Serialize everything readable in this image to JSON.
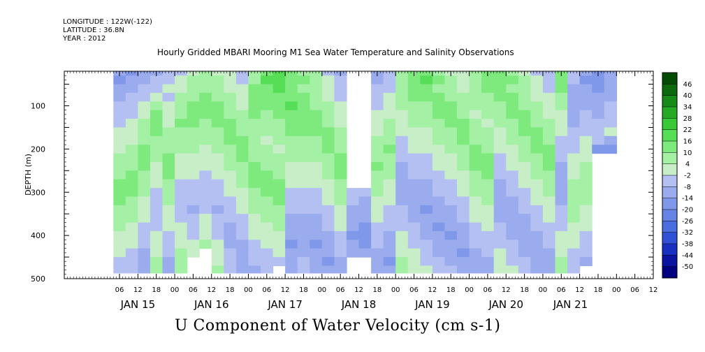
{
  "header": {
    "longitude": "LONGITUDE : 122W(-122)",
    "latitude": "LATITUDE : 36.8N",
    "year": "YEAR : 2012"
  },
  "chart_data": {
    "type": "heatmap",
    "title": "Hourly Gridded MBARI Mooring M1 Sea Water Temperature and Salinity Observations",
    "xlabel": "U Component of Water Velocity (cm s-1)",
    "ylabel": "DEPTH (m)",
    "x_start_hour": 0,
    "x_end_hour": 167,
    "ylim": [
      500,
      20
    ],
    "y_ticks": [
      100,
      200,
      300,
      400,
      500
    ],
    "x_hour_tick_labels": [
      "06",
      "12",
      "18",
      "00",
      "06",
      "12",
      "18",
      "00",
      "06",
      "12",
      "18",
      "00",
      "06",
      "12",
      "18",
      "00",
      "06",
      "12",
      "18",
      "00",
      "06",
      "12",
      "18",
      "00",
      "06",
      "12",
      "18",
      "00",
      "06",
      "12"
    ],
    "x_hour_tick_positions_h": [
      6,
      12,
      18,
      24,
      30,
      36,
      42,
      48,
      54,
      60,
      66,
      72,
      78,
      84,
      90,
      96,
      102,
      108,
      114,
      120,
      126,
      132,
      138,
      144,
      150,
      156,
      162,
      168,
      174,
      180
    ],
    "x_day_labels": [
      "JAN 15",
      "JAN 16",
      "JAN 17",
      "JAN 18",
      "JAN 19",
      "JAN 20",
      "JAN 21"
    ],
    "x_day_positions_h": [
      12,
      36,
      60,
      84,
      108,
      132,
      153
    ],
    "colorbar": {
      "levels": [
        -50,
        -44,
        -38,
        -32,
        -26,
        -20,
        -14,
        -8,
        -2,
        4,
        10,
        16,
        22,
        28,
        34,
        40,
        46
      ],
      "tick_labels": [
        "46",
        "40",
        "34",
        "28",
        "22",
        "16",
        "10",
        "4",
        "-2",
        "-8",
        "-14",
        "-20",
        "-26",
        "-32",
        "-38",
        "-44",
        "-50"
      ],
      "colors": [
        "#000080",
        "#0a14a0",
        "#1830c0",
        "#3050d6",
        "#4a6ee0",
        "#6584e6",
        "#8098ea",
        "#9aacee",
        "#b4c0f2",
        "#c8eec8",
        "#a4f0a4",
        "#7eea7e",
        "#56de56",
        "#38c838",
        "#26aa26",
        "#188a18",
        "#0c6a0c",
        "#044c04"
      ]
    },
    "grid_hours": 4,
    "grid_depths": [
      20,
      40,
      60,
      80,
      100,
      120,
      140,
      160,
      180,
      200,
      220,
      240,
      260,
      280,
      300,
      320,
      340,
      360,
      380,
      400,
      420,
      440,
      460,
      480
    ],
    "grid_hour_values": [
      6,
      10,
      14,
      18,
      22,
      26,
      30,
      34,
      38,
      42,
      46,
      50,
      54,
      58,
      62,
      66,
      70,
      74,
      78,
      82,
      86,
      90,
      94,
      98,
      102,
      106,
      110,
      114,
      118,
      122,
      126,
      130,
      134,
      138,
      142,
      146,
      150,
      154,
      158,
      162,
      166
    ],
    "values": [
      [
        -14,
        -16,
        -12,
        -10,
        -8,
        -4,
        2,
        4,
        2,
        -2,
        -6,
        6,
        14,
        16,
        12,
        8,
        4,
        -4,
        -10,
        null,
        null,
        -12,
        -8,
        4,
        10,
        14,
        8,
        2,
        -2,
        4,
        10,
        12,
        8,
        2,
        -4,
        -8,
        10,
        -6,
        -14,
        -16,
        -12
      ],
      [
        -16,
        -14,
        -10,
        -8,
        -6,
        -2,
        4,
        6,
        4,
        0,
        -4,
        8,
        16,
        18,
        14,
        10,
        6,
        -2,
        -8,
        null,
        null,
        -10,
        -6,
        6,
        12,
        16,
        10,
        4,
        0,
        6,
        12,
        14,
        10,
        4,
        -2,
        -6,
        12,
        -8,
        -16,
        -18,
        -14
      ],
      [
        -12,
        -10,
        -8,
        -4,
        -2,
        2,
        6,
        8,
        6,
        2,
        -2,
        10,
        14,
        16,
        12,
        8,
        4,
        0,
        -6,
        null,
        null,
        -8,
        -4,
        8,
        14,
        12,
        8,
        6,
        2,
        8,
        10,
        12,
        8,
        4,
        0,
        -4,
        10,
        -10,
        -14,
        -16,
        -12
      ],
      [
        -10,
        -8,
        -6,
        2,
        -4,
        4,
        8,
        10,
        8,
        4,
        0,
        12,
        12,
        14,
        14,
        10,
        6,
        2,
        -4,
        null,
        null,
        -6,
        -2,
        6,
        10,
        10,
        10,
        8,
        4,
        6,
        8,
        10,
        10,
        6,
        2,
        -2,
        6,
        -12,
        -12,
        -14,
        -10
      ],
      [
        -8,
        -6,
        -2,
        6,
        -2,
        6,
        10,
        12,
        10,
        6,
        2,
        12,
        10,
        12,
        16,
        12,
        8,
        4,
        -2,
        null,
        null,
        -4,
        0,
        4,
        8,
        8,
        12,
        10,
        6,
        4,
        6,
        8,
        12,
        8,
        4,
        0,
        4,
        -14,
        -10,
        -12,
        -8
      ],
      [
        -6,
        -4,
        2,
        10,
        0,
        8,
        12,
        10,
        12,
        8,
        4,
        10,
        8,
        10,
        14,
        14,
        10,
        6,
        0,
        null,
        null,
        -2,
        2,
        2,
        6,
        6,
        10,
        12,
        8,
        2,
        4,
        6,
        10,
        10,
        6,
        2,
        2,
        -12,
        -8,
        -10,
        -6
      ],
      [
        -4,
        -2,
        4,
        12,
        2,
        10,
        10,
        8,
        10,
        10,
        6,
        8,
        6,
        8,
        12,
        12,
        12,
        8,
        2,
        null,
        null,
        0,
        4,
        0,
        4,
        4,
        8,
        10,
        10,
        4,
        2,
        4,
        8,
        12,
        8,
        4,
        0,
        -10,
        -6,
        -8,
        -4
      ],
      [
        -2,
        0,
        6,
        10,
        4,
        8,
        8,
        6,
        8,
        12,
        8,
        6,
        4,
        6,
        10,
        10,
        10,
        10,
        4,
        null,
        null,
        2,
        6,
        -2,
        2,
        2,
        6,
        8,
        12,
        6,
        4,
        2,
        6,
        10,
        10,
        6,
        -2,
        -8,
        -4,
        -6,
        -2
      ],
      [
        0,
        2,
        8,
        8,
        6,
        6,
        6,
        4,
        6,
        10,
        10,
        4,
        2,
        4,
        8,
        8,
        8,
        12,
        6,
        null,
        null,
        4,
        8,
        -4,
        0,
        0,
        4,
        6,
        10,
        8,
        6,
        0,
        4,
        8,
        12,
        8,
        -4,
        -6,
        -2,
        -4,
        -14
      ],
      [
        2,
        4,
        10,
        6,
        8,
        4,
        4,
        2,
        4,
        8,
        12,
        6,
        4,
        2,
        6,
        6,
        6,
        10,
        8,
        null,
        null,
        6,
        10,
        -6,
        -2,
        -2,
        2,
        4,
        8,
        10,
        8,
        -2,
        2,
        6,
        10,
        10,
        -6,
        -4,
        0,
        -16,
        -16
      ],
      [
        4,
        6,
        12,
        4,
        10,
        2,
        2,
        0,
        2,
        6,
        10,
        8,
        6,
        4,
        4,
        4,
        4,
        8,
        10,
        null,
        null,
        8,
        8,
        -8,
        -4,
        -4,
        0,
        2,
        6,
        12,
        10,
        -4,
        0,
        4,
        8,
        12,
        -8,
        -2,
        2,
        null,
        null
      ],
      [
        6,
        8,
        10,
        2,
        12,
        0,
        0,
        -2,
        0,
        4,
        8,
        10,
        8,
        6,
        2,
        2,
        2,
        6,
        12,
        null,
        null,
        10,
        6,
        -10,
        -6,
        -6,
        -2,
        0,
        4,
        10,
        12,
        -6,
        -2,
        2,
        6,
        10,
        -10,
        0,
        4,
        null,
        null
      ],
      [
        8,
        10,
        8,
        0,
        10,
        -2,
        -2,
        -4,
        -2,
        2,
        6,
        12,
        10,
        8,
        0,
        0,
        0,
        4,
        10,
        null,
        null,
        8,
        4,
        -12,
        -8,
        -8,
        -4,
        -2,
        2,
        8,
        10,
        -8,
        -4,
        0,
        4,
        8,
        -12,
        2,
        6,
        null,
        null
      ],
      [
        10,
        12,
        6,
        -2,
        8,
        -4,
        -4,
        -6,
        -4,
        0,
        4,
        10,
        12,
        10,
        -2,
        -2,
        -2,
        2,
        8,
        null,
        null,
        6,
        2,
        -14,
        -10,
        -10,
        -6,
        -4,
        0,
        6,
        8,
        -10,
        -6,
        -2,
        2,
        6,
        -14,
        4,
        8,
        null,
        null
      ],
      [
        12,
        10,
        4,
        -4,
        6,
        -6,
        -6,
        -8,
        -6,
        -2,
        2,
        8,
        10,
        12,
        -4,
        -4,
        -4,
        0,
        6,
        -6,
        -8,
        4,
        0,
        -12,
        -12,
        -12,
        -8,
        -6,
        -2,
        4,
        6,
        -12,
        -8,
        -4,
        0,
        4,
        -12,
        6,
        6,
        null,
        null
      ],
      [
        10,
        8,
        2,
        -6,
        4,
        -8,
        -8,
        -6,
        -8,
        -4,
        0,
        6,
        8,
        10,
        -6,
        -6,
        -6,
        -2,
        4,
        -8,
        -10,
        2,
        -2,
        -10,
        -14,
        -14,
        -10,
        -8,
        -4,
        2,
        4,
        -14,
        -10,
        -6,
        -2,
        2,
        -10,
        8,
        4,
        null,
        null
      ],
      [
        8,
        6,
        0,
        -8,
        2,
        -6,
        -10,
        -4,
        -10,
        -6,
        -2,
        4,
        6,
        8,
        -8,
        -8,
        -8,
        -4,
        2,
        -10,
        -12,
        0,
        -4,
        -8,
        -12,
        -16,
        -12,
        -10,
        -6,
        0,
        2,
        -12,
        -12,
        -8,
        -4,
        0,
        -8,
        6,
        2,
        null,
        null
      ],
      [
        6,
        4,
        -2,
        -6,
        0,
        -4,
        -8,
        -2,
        -8,
        -8,
        -4,
        2,
        4,
        6,
        -10,
        -10,
        -10,
        -6,
        0,
        -12,
        -14,
        -2,
        -6,
        -6,
        -10,
        -14,
        -14,
        -12,
        -8,
        -2,
        0,
        -10,
        -14,
        -10,
        -6,
        -2,
        -6,
        4,
        0,
        null,
        null
      ],
      [
        4,
        2,
        -4,
        -4,
        -2,
        -2,
        -6,
        0,
        -6,
        -10,
        -6,
        0,
        2,
        4,
        -12,
        -12,
        -12,
        -8,
        -2,
        -14,
        -16,
        -4,
        -8,
        -4,
        -8,
        -12,
        -16,
        -14,
        -10,
        -4,
        -2,
        -8,
        -12,
        -12,
        -8,
        -4,
        -4,
        2,
        -2,
        null,
        null
      ],
      [
        2,
        0,
        -6,
        -2,
        -4,
        0,
        -4,
        2,
        -4,
        -12,
        -8,
        -2,
        0,
        2,
        -14,
        -14,
        -14,
        -10,
        -4,
        -16,
        -18,
        -6,
        -10,
        -2,
        -6,
        -10,
        -14,
        -16,
        -12,
        -6,
        -4,
        -6,
        -10,
        -14,
        -10,
        -6,
        -2,
        0,
        -4,
        null,
        null
      ],
      [
        0,
        -2,
        -8,
        0,
        -6,
        2,
        -2,
        4,
        -2,
        -10,
        -10,
        -4,
        -2,
        0,
        -16,
        -12,
        -16,
        -12,
        -6,
        -14,
        -16,
        -8,
        -12,
        0,
        -4,
        -8,
        -12,
        -14,
        -14,
        -8,
        -6,
        -4,
        -8,
        -12,
        -12,
        -8,
        0,
        -2,
        -6,
        null,
        null
      ],
      [
        -2,
        -4,
        -10,
        2,
        -8,
        4,
        0,
        null,
        0,
        -8,
        -12,
        -6,
        -4,
        -2,
        -14,
        -10,
        -14,
        -14,
        -8,
        -12,
        -14,
        -10,
        -14,
        2,
        -2,
        -6,
        -10,
        -12,
        -16,
        -10,
        -8,
        -2,
        -6,
        -10,
        -14,
        -10,
        2,
        -4,
        -8,
        null,
        null
      ],
      [
        -4,
        -6,
        -12,
        4,
        -10,
        6,
        null,
        null,
        2,
        -6,
        -14,
        -8,
        -6,
        -4,
        -12,
        -8,
        -12,
        -16,
        -10,
        null,
        null,
        -12,
        -16,
        4,
        0,
        -4,
        -8,
        -10,
        -14,
        -12,
        -10,
        0,
        -4,
        -8,
        -12,
        -12,
        4,
        -6,
        -10,
        null,
        null
      ],
      [
        -6,
        -8,
        -14,
        6,
        -12,
        4,
        null,
        null,
        4,
        -4,
        -12,
        -10,
        -8,
        null,
        -10,
        -6,
        -10,
        -14,
        -12,
        null,
        null,
        -14,
        -14,
        6,
        2,
        -2,
        -6,
        -8,
        -12,
        -14,
        -12,
        2,
        -2,
        -6,
        -10,
        -14,
        6,
        -8,
        null,
        null,
        null
      ]
    ]
  }
}
